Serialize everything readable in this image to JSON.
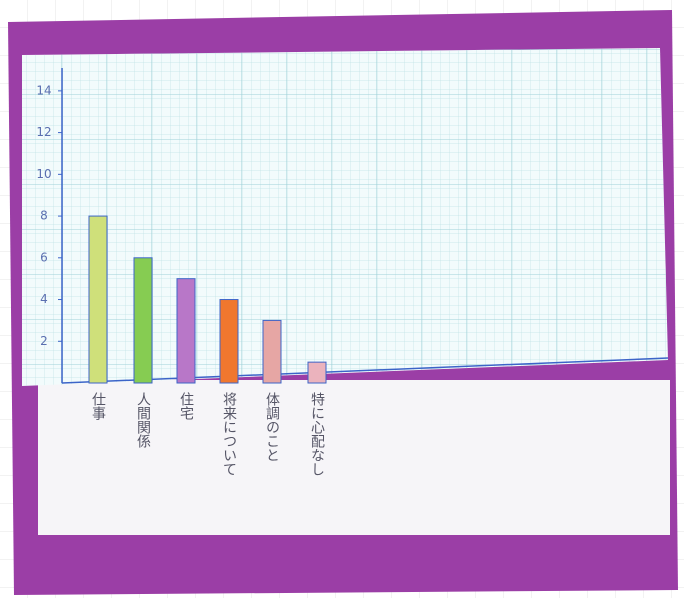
{
  "chart_data": {
    "type": "bar",
    "categories": [
      "仕事",
      "人間関係",
      "住宅",
      "将来について",
      "体調のこと",
      "特に心配なし"
    ],
    "values": [
      8,
      6,
      5,
      4,
      3,
      1
    ],
    "colors": [
      "#cfe07a",
      "#86cc52",
      "#b877c8",
      "#f0772e",
      "#e6a6a4",
      "#ebb3bd"
    ],
    "ylim": [
      0,
      15
    ],
    "yticks": [
      2,
      4,
      6,
      8,
      10,
      12,
      14
    ]
  }
}
